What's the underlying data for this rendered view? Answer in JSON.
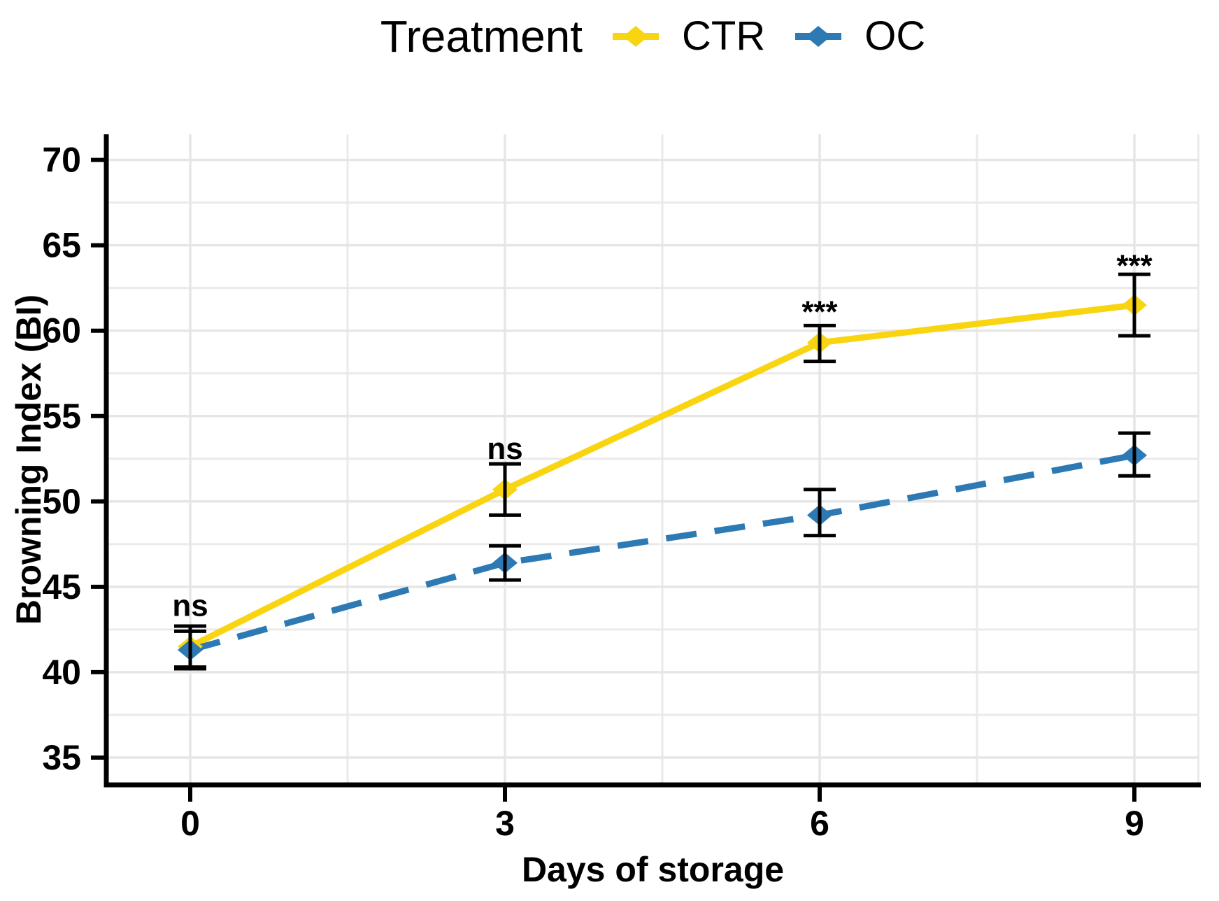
{
  "legend": {
    "title": "Treatment"
  },
  "chart_data": {
    "type": "line",
    "title": "",
    "xlabel": "Days of storage",
    "ylabel": "Browning Index (BI)",
    "x": [
      0,
      3,
      6,
      9
    ],
    "x_tick_labels": [
      "0",
      "3",
      "6",
      "9"
    ],
    "y_ticks": [
      35,
      40,
      45,
      50,
      55,
      60,
      65,
      70
    ],
    "y_minor_ticks": [
      37.5,
      42.5,
      47.5,
      52.5,
      57.5,
      62.5,
      67.5
    ],
    "x_minor_ticks": [
      1.5,
      4.5,
      7.5
    ],
    "xlim": [
      -0.8,
      9.62
    ],
    "ylim": [
      33.4,
      71.5
    ],
    "grid": "major+minor",
    "legend_position": "top",
    "series": [
      {
        "name": "CTR",
        "color": "#F8D411",
        "line_style": "solid",
        "marker": "diamond",
        "values": [
          41.5,
          50.7,
          59.3,
          61.5
        ],
        "error_low": [
          40.3,
          49.2,
          58.2,
          59.7
        ],
        "error_high": [
          42.7,
          52.2,
          60.3,
          63.3
        ]
      },
      {
        "name": "OC",
        "color": "#2C79B4",
        "line_style": "dashed",
        "marker": "diamond",
        "values": [
          41.3,
          46.4,
          49.2,
          52.7
        ],
        "error_low": [
          40.2,
          45.4,
          48.0,
          51.5
        ],
        "error_high": [
          42.4,
          47.4,
          50.7,
          54.0
        ]
      }
    ],
    "annotations": [
      {
        "x": 0,
        "y": 43.3,
        "text": "ns"
      },
      {
        "x": 3,
        "y": 52.5,
        "text": "ns"
      },
      {
        "x": 6,
        "y": 60.5,
        "text": "***"
      },
      {
        "x": 9,
        "y": 63.2,
        "text": "***"
      }
    ]
  }
}
